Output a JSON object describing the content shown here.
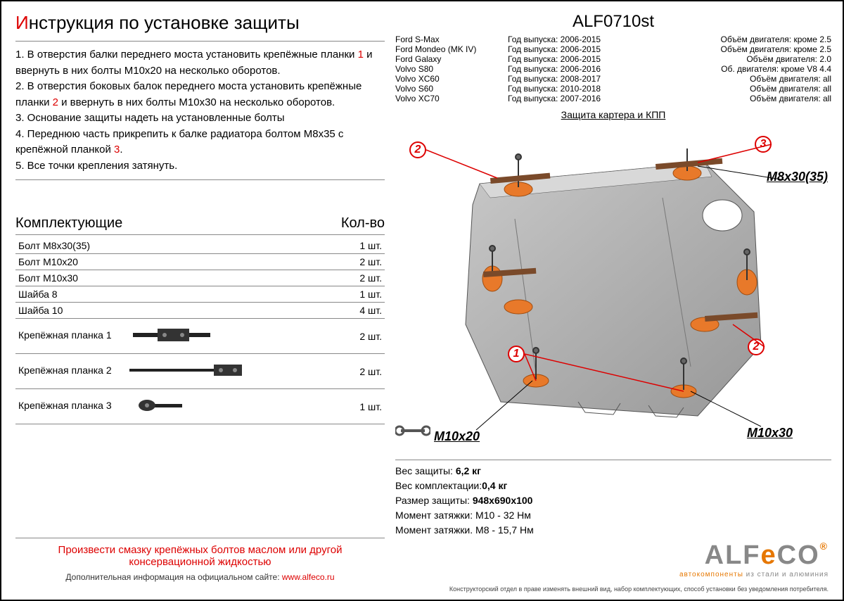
{
  "title_prefix": "И",
  "title_rest": "нструкция по установке защиты",
  "instructions": [
    {
      "n": "1.",
      "text_before": " В отверстия балки переднего моста установить крепёжные планки ",
      "red": "1",
      "text_after": " и ввернуть в них болты М10х20 на несколько оборотов."
    },
    {
      "n": "2.",
      "text_before": " В отверстия боковых балок переднего моста установить крепёжные планки ",
      "red": "2",
      "text_after": " и ввернуть в них болты М10х30 на несколько оборотов."
    },
    {
      "n": "3.",
      "text_before": " Основание защиты надеть на установленные болты",
      "red": "",
      "text_after": ""
    },
    {
      "n": "4.",
      "text_before": " Переднюю часть прикрепить к балке радиатора болтом М8х35 с крепёжной планкой ",
      "red": "3",
      "text_after": "."
    },
    {
      "n": "5.",
      "text_before": " Все точки крепления затянуть.",
      "red": "",
      "text_after": ""
    }
  ],
  "parts_title": "Комплектующие",
  "qty_title": "Кол-во",
  "parts": [
    {
      "name": "Болт М8х30(35)",
      "qty": "1 шт."
    },
    {
      "name": "Болт М10х20",
      "qty": "2 шт."
    },
    {
      "name": "Болт М10х30",
      "qty": "2 шт."
    },
    {
      "name": "Шайба 8",
      "qty": "1 шт."
    },
    {
      "name": "Шайба 10",
      "qty": "4 шт."
    }
  ],
  "brackets": [
    {
      "name": "Крепёжная планка 1",
      "qty": "2 шт."
    },
    {
      "name": "Крепёжная планка 2",
      "qty": "2 шт."
    },
    {
      "name": "Крепёжная планка 3",
      "qty": "1 шт."
    }
  ],
  "footer_note1": "Произвести смазку крепёжных болтов маслом или другой",
  "footer_note2": "консервационной жидкостью",
  "footer_info": "Дополнительная информация на официальном сайте: ",
  "footer_url": "www.alfeco.ru",
  "part_number": "ALF0710st",
  "vehicles": [
    {
      "model": "Ford S-Max",
      "year": "Год выпуска: 2006-2015",
      "engine": "Объём двигателя: кроме 2.5"
    },
    {
      "model": "Ford Mondeo (MK IV)",
      "year": "Год выпуска: 2006-2015",
      "engine": "Объём двигателя: кроме 2.5"
    },
    {
      "model": "Ford Galaxy",
      "year": "Год выпуска: 2006-2015",
      "engine": "Объём двигателя: 2.0"
    },
    {
      "model": "Volvo S80",
      "year": "Год выпуска: 2006-2016",
      "engine": "Об. двигателя: кроме V8 4.4"
    },
    {
      "model": "Volvo XC60",
      "year": "Год выпуска: 2008-2017",
      "engine": "Объём двигателя: all"
    },
    {
      "model": "Volvo S60",
      "year": "Год выпуска: 2010-2018",
      "engine": "Объём двигателя: all"
    },
    {
      "model": "Volvo XC70",
      "year": "Год выпуска: 2007-2016",
      "engine": "Объём двигателя: all"
    }
  ],
  "protection_title": "Защита картера и КПП",
  "bolt_labels": {
    "m8": "M8x30(35)",
    "m10x20": "M10x20",
    "m10x30": "M10x30"
  },
  "callouts": {
    "c1": "1",
    "c2a": "2",
    "c2b": "2",
    "c3": "3"
  },
  "specs": [
    {
      "label": "Вес защиты: ",
      "value": "6,2 кг"
    },
    {
      "label": "Вес комплектации:",
      "value": "0,4 кг"
    },
    {
      "label": "Размер защиты: ",
      "value": "948х690х100"
    },
    {
      "label": "Момент затяжки:  М10 - 32 Нм",
      "value": ""
    },
    {
      "label": "Момент затяжки.  М8 - 15,7 Нм",
      "value": ""
    }
  ],
  "logo": {
    "alf": "ALF",
    "eco_e": "e",
    "eco_co": "CO",
    "sub1": "автокомпоненты",
    "sub2": " из стали и алюминия"
  },
  "fine_print": "Конструкторский отдел в праве изменять внешний вид, набор комплектующих, способ установки без уведомления потребителя.",
  "colors": {
    "red": "#d00000",
    "orange": "#e67700",
    "plate": "#b8b8b8",
    "plate_dark": "#9a9a9a",
    "bolt_orange": "#e8792a"
  }
}
